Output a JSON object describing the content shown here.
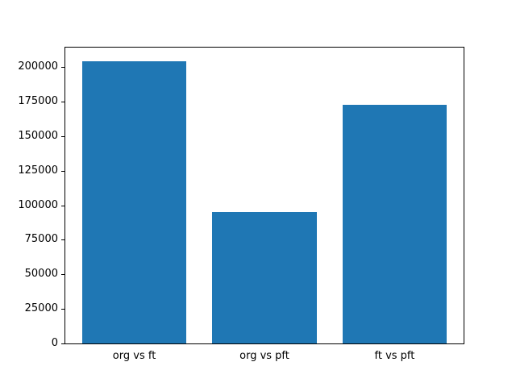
{
  "chart_data": {
    "type": "bar",
    "categories": [
      "org vs ft",
      "org vs pft",
      "ft vs pft"
    ],
    "values": [
      204000,
      95000,
      173000
    ],
    "title": "",
    "xlabel": "",
    "ylabel": "",
    "ylim": [
      0,
      214200
    ],
    "yticks": [
      0,
      25000,
      50000,
      75000,
      100000,
      125000,
      150000,
      175000,
      200000
    ],
    "bar_color": "#1f77b4",
    "axis_color": "#000000",
    "background_color": "#ffffff",
    "grid": false,
    "legend": false,
    "bar_width_fraction": 0.8,
    "x_margin": 0.53
  }
}
